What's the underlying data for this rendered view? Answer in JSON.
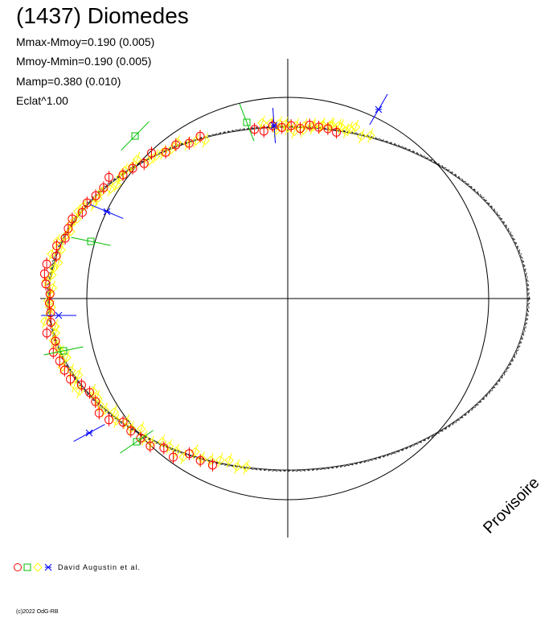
{
  "title": "(1437) Diomedes",
  "stats": [
    "Mmax-Mmoy=0.190 (0.005)",
    "Mmoy-Mmin=0.190 (0.005)",
    "Mamp=0.380 (0.010)",
    "Eclat^1.00"
  ],
  "watermark": "Provisoire",
  "legend_authors": "David Augustin et al.",
  "credit": "(c)2022 OdG-RB",
  "colors": {
    "red": "#ff0000",
    "green": "#00c000",
    "yellow": "#ffff00",
    "blue": "#0000ff",
    "axis": "#000000"
  },
  "chart_data": {
    "type": "scatter",
    "coordinate_system": "polar",
    "title": "(1437) Diomedes",
    "reference_circle": true,
    "model_curve": "oval",
    "series": [
      {
        "marker": "circle",
        "color": "#ff0000",
        "count_approx": 70
      },
      {
        "marker": "square",
        "color": "#00c000",
        "count_approx": 6
      },
      {
        "marker": "diamond",
        "color": "#ffff00",
        "count_approx": 90
      },
      {
        "marker": "star",
        "color": "#0000ff",
        "count_approx": 6
      }
    ]
  }
}
